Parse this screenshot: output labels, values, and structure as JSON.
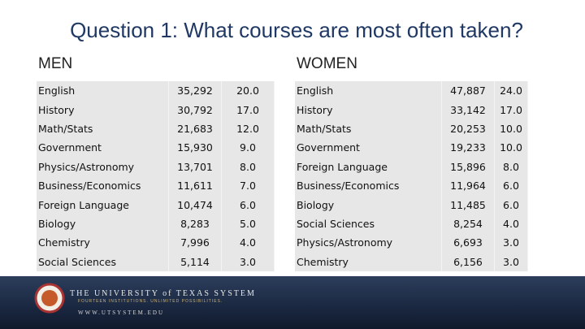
{
  "title": "Question 1: What courses are most often taken?",
  "men": {
    "label": "MEN",
    "rows": [
      [
        "English",
        "35,292",
        "20.0"
      ],
      [
        "History",
        "30,792",
        "17.0"
      ],
      [
        "Math/Stats",
        "21,683",
        "12.0"
      ],
      [
        "Government",
        "15,930",
        "9.0"
      ],
      [
        "Physics/Astronomy",
        "13,701",
        "8.0"
      ],
      [
        "Business/Economics",
        "11,611",
        "7.0"
      ],
      [
        "Foreign Language",
        "10,474",
        "6.0"
      ],
      [
        "Biology",
        "8,283",
        "5.0"
      ],
      [
        "Chemistry",
        "7,996",
        "4.0"
      ],
      [
        "Social Sciences",
        "5,114",
        "3.0"
      ]
    ]
  },
  "women": {
    "label": "WOMEN",
    "rows": [
      [
        "English",
        "47,887",
        "24.0"
      ],
      [
        "History",
        "33,142",
        "17.0"
      ],
      [
        "Math/Stats",
        "20,253",
        "10.0"
      ],
      [
        "Government",
        "19,233",
        "10.0"
      ],
      [
        "Foreign Language",
        "15,896",
        "8.0"
      ],
      [
        "Business/Economics",
        "11,964",
        "6.0"
      ],
      [
        "Biology",
        "11,485",
        "6.0"
      ],
      [
        "Social Sciences",
        "8,254",
        "4.0"
      ],
      [
        "Physics/Astronomy",
        "6,693",
        "3.0"
      ],
      [
        "Chemistry",
        "6,156",
        "3.0"
      ]
    ]
  },
  "footer": {
    "name": "THE UNIVERSITY of TEXAS SYSTEM",
    "tagline": "FOURTEEN INSTITUTIONS. UNLIMITED POSSIBILITIES.",
    "url": "WWW.UTSYSTEM.EDU"
  }
}
